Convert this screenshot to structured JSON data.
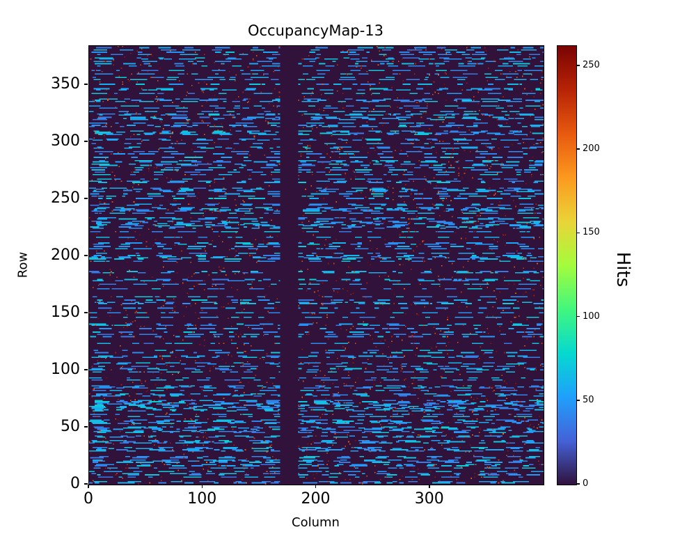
{
  "figure": {
    "title": "OccupancyMap-13",
    "xlabel": "Column",
    "ylabel": "Row",
    "colorbar_label": "Hits"
  },
  "chart_data": {
    "type": "heatmap",
    "title": "OccupancyMap-13",
    "xlabel": "Column",
    "ylabel": "Row",
    "n_cols": 400,
    "n_rows": 384,
    "x_ticks": [
      0,
      100,
      200,
      300
    ],
    "y_ticks": [
      0,
      50,
      100,
      150,
      200,
      250,
      300,
      350
    ],
    "origin": "lower",
    "grid": false,
    "colormap": "turbo",
    "colormap_stops": [
      [
        0.0,
        "#30123b"
      ],
      [
        0.1,
        "#4462d8"
      ],
      [
        0.2,
        "#1fa0fc"
      ],
      [
        0.3,
        "#06d9cf"
      ],
      [
        0.4,
        "#42f77d"
      ],
      [
        0.5,
        "#a4fc3c"
      ],
      [
        0.6,
        "#ead437"
      ],
      [
        0.7,
        "#fb991e"
      ],
      [
        0.8,
        "#e8590f"
      ],
      [
        0.9,
        "#b72306"
      ],
      [
        1.0,
        "#7a0403"
      ]
    ],
    "colorbar": {
      "label": "Hits",
      "ticks": [
        0,
        50,
        100,
        150,
        200,
        250
      ],
      "vmin": 0,
      "vmax": 262,
      "position": "right"
    },
    "pattern": {
      "description": "Pixel-detector occupancy map: near-zero dark background, horizontal dashed streaks of ~35-75 hits (light blue), sparse isolated hot pixels of ~200-262 hits (dark red), and one dead vertical column band with zero hits.",
      "background_value": 0,
      "dead_column_band": [
        168,
        183
      ],
      "streak_row_probability": 0.5,
      "streak_value_range": [
        35,
        75
      ],
      "hot_pixel_probability": 0.012,
      "hot_value_range": [
        200,
        262
      ],
      "seed": 13
    }
  }
}
